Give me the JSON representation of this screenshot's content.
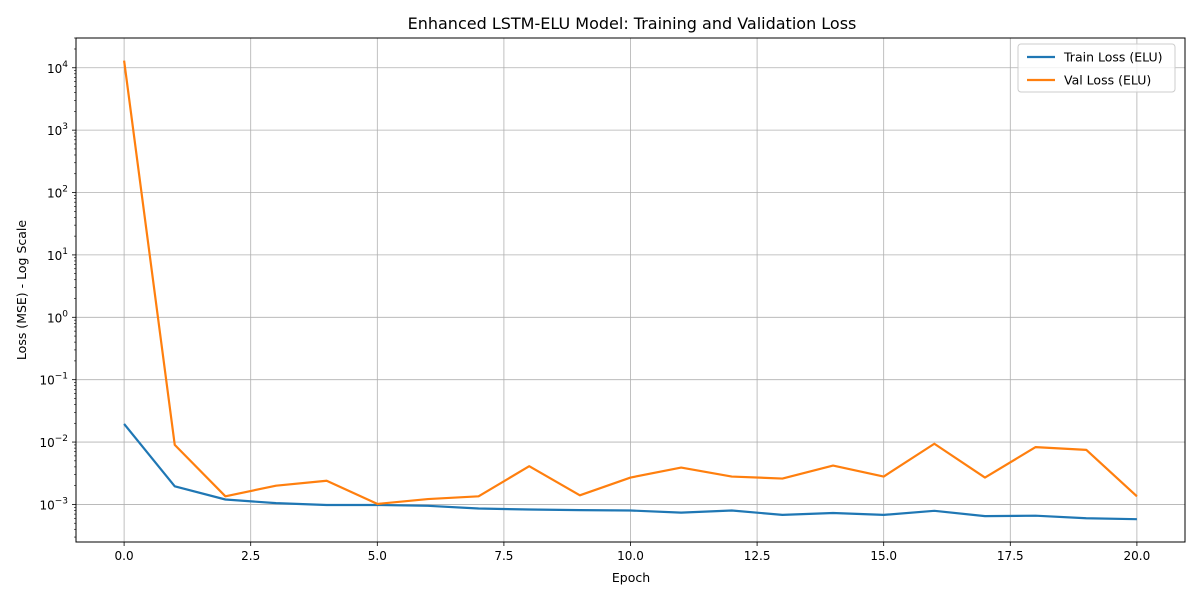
{
  "chart_data": {
    "type": "line",
    "title": "Enhanced LSTM-ELU Model: Training and Validation Loss",
    "xlabel": "Epoch",
    "ylabel": "Loss (MSE) - Log Scale",
    "y_scale": "log",
    "xlim": [
      -0.95,
      20.95
    ],
    "ylim": [
      0.00025,
      30000
    ],
    "x_ticks": [
      0.0,
      2.5,
      5.0,
      7.5,
      10.0,
      12.5,
      15.0,
      17.5,
      20.0
    ],
    "x_tick_labels": [
      "0.0",
      "2.5",
      "5.0",
      "7.5",
      "10.0",
      "12.5",
      "15.0",
      "17.5",
      "20.0"
    ],
    "y_ticks": [
      {
        "value": 0.001,
        "base": "10",
        "exp": "−3"
      },
      {
        "value": 0.01,
        "base": "10",
        "exp": "−2"
      },
      {
        "value": 0.1,
        "base": "10",
        "exp": "−1"
      },
      {
        "value": 1,
        "base": "10",
        "exp": "0"
      },
      {
        "value": 10,
        "base": "10",
        "exp": "1"
      },
      {
        "value": 100,
        "base": "10",
        "exp": "2"
      },
      {
        "value": 1000,
        "base": "10",
        "exp": "3"
      },
      {
        "value": 10000,
        "base": "10",
        "exp": "4"
      }
    ],
    "grid": true,
    "legend_position": "top-right",
    "x": [
      0,
      1,
      2,
      3,
      4,
      5,
      6,
      7,
      8,
      9,
      10,
      11,
      12,
      13,
      14,
      15,
      16,
      17,
      18,
      19,
      20
    ],
    "series": [
      {
        "name": "Train Loss (ELU)",
        "color": "#1f77b4",
        "values": [
          0.0195,
          0.00195,
          0.0012,
          0.00105,
          0.00098,
          0.00098,
          0.00095,
          0.00086,
          0.00083,
          0.00081,
          0.0008,
          0.00074,
          0.0008,
          0.00068,
          0.00073,
          0.00068,
          0.00079,
          0.00065,
          0.00066,
          0.0006,
          0.00058
        ]
      },
      {
        "name": "Val Loss (ELU)",
        "color": "#ff7f0e",
        "values": [
          13000,
          0.009,
          0.00135,
          0.002,
          0.0024,
          0.00102,
          0.00122,
          0.00135,
          0.0041,
          0.0014,
          0.0027,
          0.0039,
          0.0028,
          0.0026,
          0.0042,
          0.0028,
          0.0094,
          0.0027,
          0.0083,
          0.0075,
          0.00135
        ]
      }
    ]
  }
}
